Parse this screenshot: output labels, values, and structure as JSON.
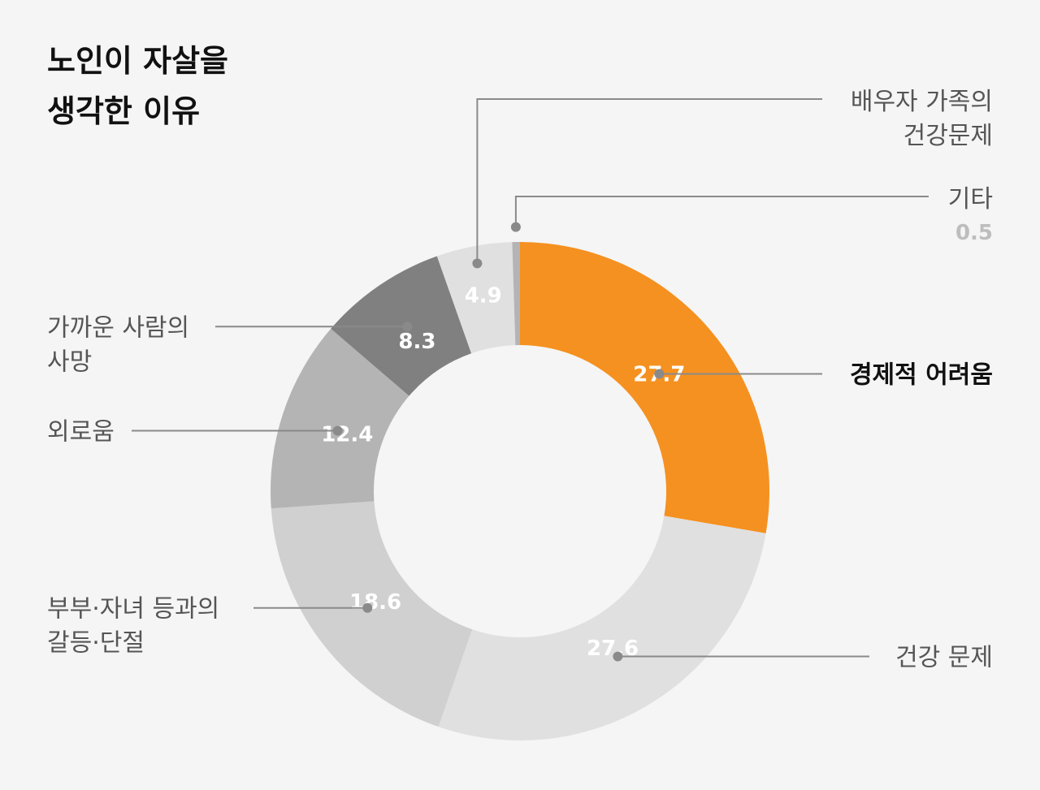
{
  "chart_data": {
    "type": "pie",
    "title_lines": [
      "노인이 자살을",
      "생각한 이유"
    ],
    "slices": [
      {
        "label_lines": [
          "경제적 어려움"
        ],
        "value": 27.7,
        "color": "#f59120",
        "highlight": true
      },
      {
        "label_lines": [
          "건강 문제"
        ],
        "value": 27.6,
        "color": "#e0e0e0"
      },
      {
        "label_lines": [
          "부부·자녀 등과의",
          "갈등·단절"
        ],
        "value": 18.6,
        "color": "#d0d0d0"
      },
      {
        "label_lines": [
          "외로움"
        ],
        "value": 12.4,
        "color": "#b4b4b4"
      },
      {
        "label_lines": [
          "가까운 사람의",
          "사망"
        ],
        "value": 8.3,
        "color": "#808080"
      },
      {
        "label_lines": [
          "배우자 가족의",
          "건강문제"
        ],
        "value": 4.9,
        "color": "#e0e0e0"
      },
      {
        "label_lines": [
          "기타"
        ],
        "value": 0.5,
        "color": "#b4b4b4",
        "value_outside": true
      }
    ]
  }
}
